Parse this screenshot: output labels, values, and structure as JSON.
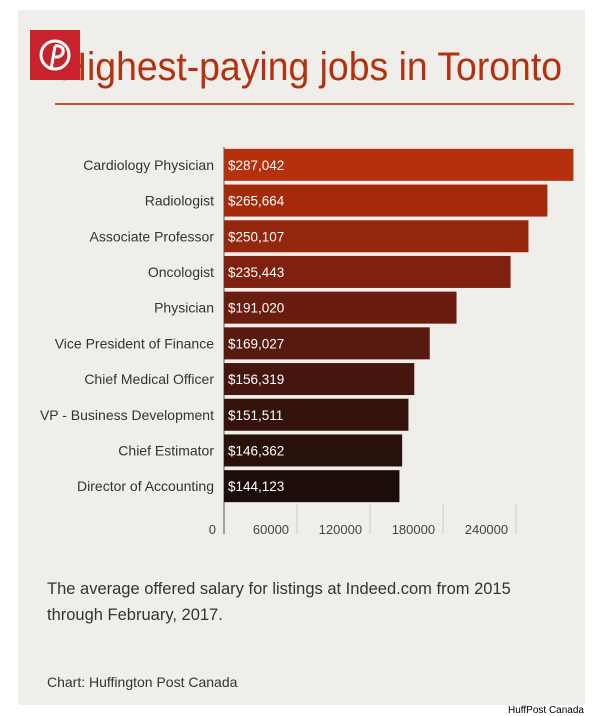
{
  "chart_data": {
    "type": "bar",
    "orientation": "horizontal",
    "title": "Highest-paying jobs in Toronto",
    "subtitle": "The average offered salary for listings at Indeed.com from 2015 through February, 2017.",
    "source": "Chart: Huffington Post Canada",
    "credit": "HuffPost Canada",
    "categories": [
      "Cardiology Physician",
      "Radiologist",
      "Associate Professor",
      "Oncologist",
      "Physician",
      "Vice President of Finance",
      "Chief Medical Officer",
      "VP - Business Development",
      "Chief Estimator",
      "Director of Accounting"
    ],
    "values": [
      287042,
      265664,
      250107,
      235443,
      191020,
      169027,
      156319,
      151511,
      146362,
      144123
    ],
    "value_labels": [
      "$287,042",
      "$265,664",
      "$250,107",
      "$235,443",
      "$191,020",
      "$169,027",
      "$156,319",
      "$151,511",
      "$146,362",
      "$144,123"
    ],
    "colors": [
      "#b5300c",
      "#a52a0c",
      "#93260d",
      "#80200e",
      "#6a1c0e",
      "#561a0f",
      "#44160e",
      "#35120c",
      "#28100b",
      "#1c0d0a"
    ],
    "xlim": [
      0,
      290000
    ],
    "xticks": [
      0,
      60000,
      120000,
      180000,
      240000
    ]
  }
}
